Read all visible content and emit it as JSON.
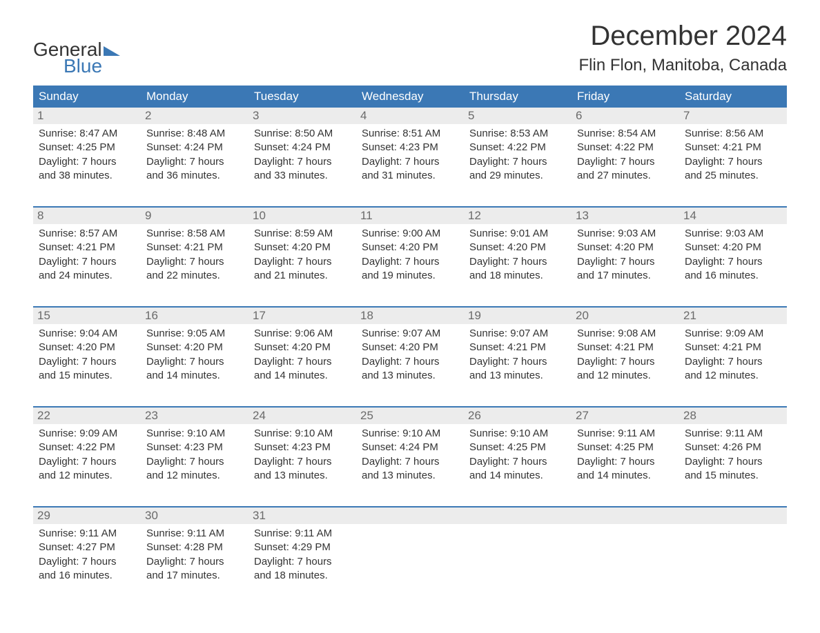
{
  "brand": {
    "word1": "General",
    "word2": "Blue"
  },
  "title": "December 2024",
  "location": "Flin Flon, Manitoba, Canada",
  "colors": {
    "brand_blue": "#3b78b5",
    "header_bg": "#3b78b5",
    "header_text": "#ffffff",
    "daynum_bg": "#ececec",
    "daynum_text": "#6a6a6a",
    "body_text": "#333333",
    "background": "#ffffff"
  },
  "fonts": {
    "title_size_pt": 30,
    "location_size_pt": 18,
    "header_size_pt": 13,
    "body_size_pt": 11
  },
  "layout": {
    "columns": 7,
    "rows": 5
  },
  "day_headers": [
    "Sunday",
    "Monday",
    "Tuesday",
    "Wednesday",
    "Thursday",
    "Friday",
    "Saturday"
  ],
  "weeks": [
    [
      {
        "n": "1",
        "sunrise": "8:47 AM",
        "sunset": "4:25 PM",
        "daylight": "7 hours and 38 minutes."
      },
      {
        "n": "2",
        "sunrise": "8:48 AM",
        "sunset": "4:24 PM",
        "daylight": "7 hours and 36 minutes."
      },
      {
        "n": "3",
        "sunrise": "8:50 AM",
        "sunset": "4:24 PM",
        "daylight": "7 hours and 33 minutes."
      },
      {
        "n": "4",
        "sunrise": "8:51 AM",
        "sunset": "4:23 PM",
        "daylight": "7 hours and 31 minutes."
      },
      {
        "n": "5",
        "sunrise": "8:53 AM",
        "sunset": "4:22 PM",
        "daylight": "7 hours and 29 minutes."
      },
      {
        "n": "6",
        "sunrise": "8:54 AM",
        "sunset": "4:22 PM",
        "daylight": "7 hours and 27 minutes."
      },
      {
        "n": "7",
        "sunrise": "8:56 AM",
        "sunset": "4:21 PM",
        "daylight": "7 hours and 25 minutes."
      }
    ],
    [
      {
        "n": "8",
        "sunrise": "8:57 AM",
        "sunset": "4:21 PM",
        "daylight": "7 hours and 24 minutes."
      },
      {
        "n": "9",
        "sunrise": "8:58 AM",
        "sunset": "4:21 PM",
        "daylight": "7 hours and 22 minutes."
      },
      {
        "n": "10",
        "sunrise": "8:59 AM",
        "sunset": "4:20 PM",
        "daylight": "7 hours and 21 minutes."
      },
      {
        "n": "11",
        "sunrise": "9:00 AM",
        "sunset": "4:20 PM",
        "daylight": "7 hours and 19 minutes."
      },
      {
        "n": "12",
        "sunrise": "9:01 AM",
        "sunset": "4:20 PM",
        "daylight": "7 hours and 18 minutes."
      },
      {
        "n": "13",
        "sunrise": "9:03 AM",
        "sunset": "4:20 PM",
        "daylight": "7 hours and 17 minutes."
      },
      {
        "n": "14",
        "sunrise": "9:03 AM",
        "sunset": "4:20 PM",
        "daylight": "7 hours and 16 minutes."
      }
    ],
    [
      {
        "n": "15",
        "sunrise": "9:04 AM",
        "sunset": "4:20 PM",
        "daylight": "7 hours and 15 minutes."
      },
      {
        "n": "16",
        "sunrise": "9:05 AM",
        "sunset": "4:20 PM",
        "daylight": "7 hours and 14 minutes."
      },
      {
        "n": "17",
        "sunrise": "9:06 AM",
        "sunset": "4:20 PM",
        "daylight": "7 hours and 14 minutes."
      },
      {
        "n": "18",
        "sunrise": "9:07 AM",
        "sunset": "4:20 PM",
        "daylight": "7 hours and 13 minutes."
      },
      {
        "n": "19",
        "sunrise": "9:07 AM",
        "sunset": "4:21 PM",
        "daylight": "7 hours and 13 minutes."
      },
      {
        "n": "20",
        "sunrise": "9:08 AM",
        "sunset": "4:21 PM",
        "daylight": "7 hours and 12 minutes."
      },
      {
        "n": "21",
        "sunrise": "9:09 AM",
        "sunset": "4:21 PM",
        "daylight": "7 hours and 12 minutes."
      }
    ],
    [
      {
        "n": "22",
        "sunrise": "9:09 AM",
        "sunset": "4:22 PM",
        "daylight": "7 hours and 12 minutes."
      },
      {
        "n": "23",
        "sunrise": "9:10 AM",
        "sunset": "4:23 PM",
        "daylight": "7 hours and 12 minutes."
      },
      {
        "n": "24",
        "sunrise": "9:10 AM",
        "sunset": "4:23 PM",
        "daylight": "7 hours and 13 minutes."
      },
      {
        "n": "25",
        "sunrise": "9:10 AM",
        "sunset": "4:24 PM",
        "daylight": "7 hours and 13 minutes."
      },
      {
        "n": "26",
        "sunrise": "9:10 AM",
        "sunset": "4:25 PM",
        "daylight": "7 hours and 14 minutes."
      },
      {
        "n": "27",
        "sunrise": "9:11 AM",
        "sunset": "4:25 PM",
        "daylight": "7 hours and 14 minutes."
      },
      {
        "n": "28",
        "sunrise": "9:11 AM",
        "sunset": "4:26 PM",
        "daylight": "7 hours and 15 minutes."
      }
    ],
    [
      {
        "n": "29",
        "sunrise": "9:11 AM",
        "sunset": "4:27 PM",
        "daylight": "7 hours and 16 minutes."
      },
      {
        "n": "30",
        "sunrise": "9:11 AM",
        "sunset": "4:28 PM",
        "daylight": "7 hours and 17 minutes."
      },
      {
        "n": "31",
        "sunrise": "9:11 AM",
        "sunset": "4:29 PM",
        "daylight": "7 hours and 18 minutes."
      },
      null,
      null,
      null,
      null
    ]
  ],
  "labels": {
    "sunrise": "Sunrise: ",
    "sunset": "Sunset: ",
    "daylight": "Daylight: "
  }
}
